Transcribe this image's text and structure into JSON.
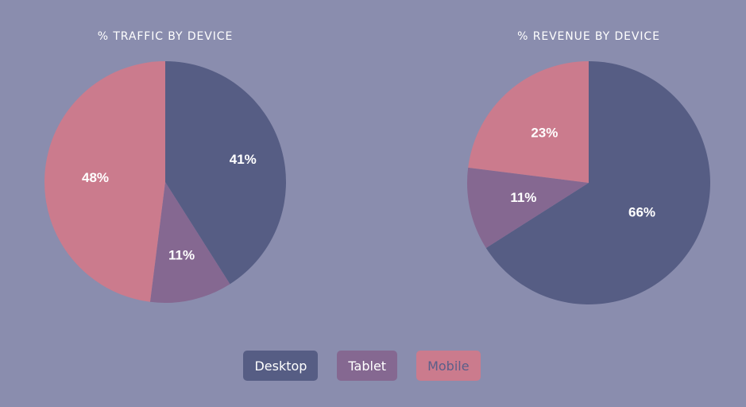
{
  "colors": {
    "background": "#8a8dae",
    "desktop": "#565d84",
    "tablet": "#856891",
    "mobile": "#cb7b8d"
  },
  "legend": {
    "desktop_label": "Desktop",
    "tablet_label": "Tablet",
    "mobile_label": "Mobile"
  },
  "chart_data": [
    {
      "type": "pie",
      "title": "% TRAFFIC BY DEVICE",
      "categories": [
        "Desktop",
        "Tablet",
        "Mobile"
      ],
      "values": [
        41,
        11,
        48
      ],
      "labels": [
        "41%",
        "11%",
        "48%"
      ],
      "colors": [
        "#565d84",
        "#856891",
        "#cb7b8d"
      ],
      "start_angle_deg": 0,
      "direction": "clockwise"
    },
    {
      "type": "pie",
      "title": "% REVENUE BY DEVICE",
      "categories": [
        "Desktop",
        "Tablet",
        "Mobile"
      ],
      "values": [
        66,
        11,
        23
      ],
      "labels": [
        "66%",
        "11%",
        "23%"
      ],
      "colors": [
        "#565d84",
        "#856891",
        "#cb7b8d"
      ],
      "start_angle_deg": 0,
      "direction": "clockwise"
    }
  ]
}
